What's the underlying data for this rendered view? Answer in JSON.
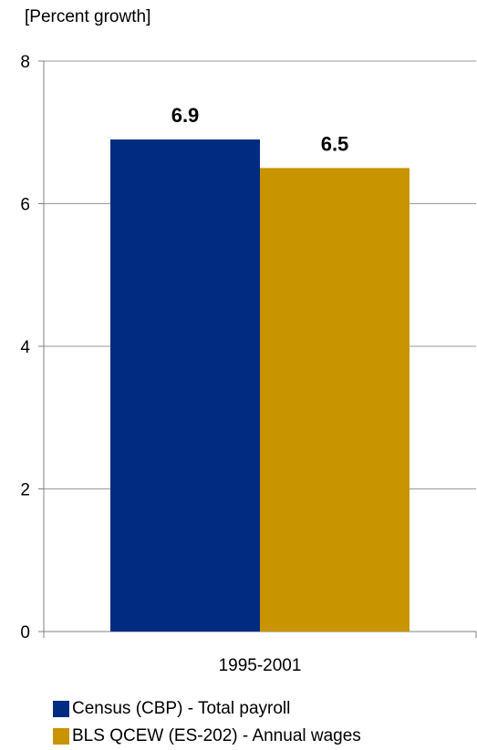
{
  "chart_data": {
    "type": "bar",
    "ylabel": "[Percent growth]",
    "ylim": [
      0,
      8
    ],
    "yticks": [
      0,
      2,
      4,
      6,
      8
    ],
    "grid": true,
    "categories": [
      "1995-2001"
    ],
    "series": [
      {
        "name": "Census (CBP) - Total payroll",
        "values": [
          6.9
        ],
        "color": "#002B80"
      },
      {
        "name": "BLS QCEW (ES-202) - Annual wages",
        "values": [
          6.5
        ],
        "color": "#C89400"
      }
    ],
    "data_labels": [
      "6.9",
      "6.5"
    ],
    "legend_position": "bottom"
  }
}
